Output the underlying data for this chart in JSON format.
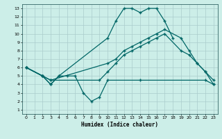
{
  "xlabel": "Humidex (Indice chaleur)",
  "bg_color": "#cceee8",
  "grid_color": "#aacccc",
  "line_color": "#006666",
  "xlim": [
    -0.5,
    23.5
  ],
  "ylim": [
    0.5,
    13.5
  ],
  "xticks": [
    0,
    1,
    2,
    3,
    4,
    5,
    6,
    7,
    8,
    9,
    10,
    11,
    12,
    13,
    14,
    15,
    16,
    17,
    18,
    19,
    20,
    21,
    22,
    23
  ],
  "yticks": [
    1,
    2,
    3,
    4,
    5,
    6,
    7,
    8,
    9,
    10,
    11,
    12,
    13
  ],
  "lines": [
    {
      "x": [
        0,
        2,
        3,
        4,
        10,
        11,
        12,
        13,
        14,
        15,
        16,
        17,
        18
      ],
      "y": [
        6,
        5,
        4,
        5,
        9.5,
        11.5,
        13,
        13,
        12.5,
        13,
        13,
        11.5,
        9.5
      ]
    },
    {
      "x": [
        0,
        2,
        3,
        10,
        11,
        12,
        13,
        14,
        15,
        16,
        17,
        19,
        20,
        21,
        22,
        23
      ],
      "y": [
        6,
        5,
        4.5,
        6.5,
        7,
        8,
        8.5,
        9,
        9.5,
        10,
        10.5,
        9.5,
        8,
        6.5,
        5.5,
        4.5
      ]
    },
    {
      "x": [
        0,
        2,
        3,
        9,
        10,
        11,
        12,
        13,
        14,
        15,
        16,
        17,
        19,
        20,
        21,
        22,
        23
      ],
      "y": [
        6,
        5,
        4.5,
        4.5,
        5.5,
        6.5,
        7.5,
        8,
        8.5,
        9,
        9.5,
        10,
        8,
        7.5,
        6.5,
        5.5,
        4
      ]
    },
    {
      "x": [
        0,
        2,
        3,
        4,
        5,
        6,
        7,
        8,
        9,
        10,
        14,
        22,
        23
      ],
      "y": [
        6,
        5,
        4,
        5,
        5,
        5,
        3,
        2,
        2.5,
        4.5,
        4.5,
        4.5,
        4
      ]
    }
  ]
}
